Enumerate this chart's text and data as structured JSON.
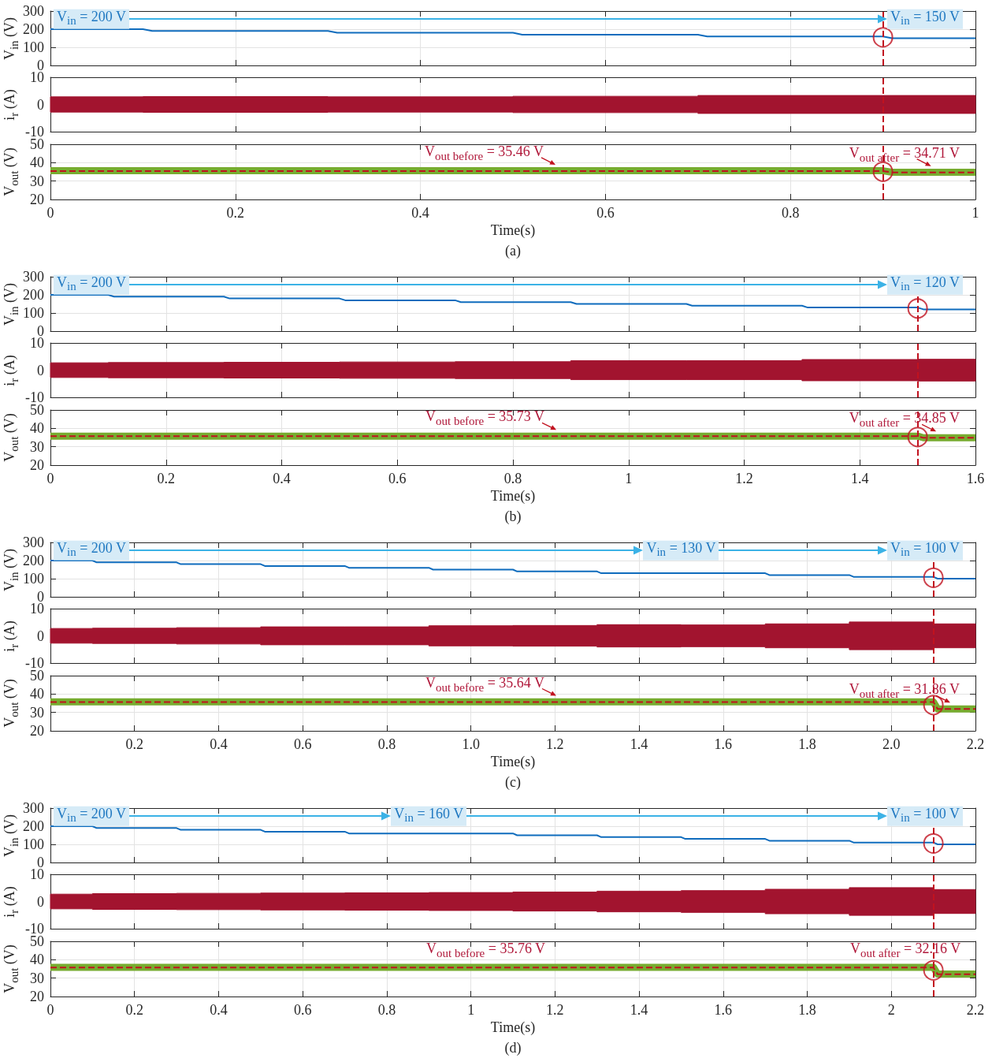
{
  "chart_data": [
    {
      "type": "line",
      "ylabel": "V$_{in}$ (V)",
      "xlim": [
        0,
        1
      ],
      "xticks": [
        0,
        0.2,
        0.4,
        0.6,
        0.8,
        1
      ],
      "ylim": [
        0,
        300
      ],
      "yticks": [
        0,
        100,
        200,
        300
      ],
      "tick_labels": "y",
      "grid": true,
      "series": [
        {
          "color": "#0f6cbd",
          "x": [
            0,
            0.1,
            0.11,
            0.3,
            0.31,
            0.5,
            0.51,
            0.7,
            0.71,
            0.9,
            0.91,
            1
          ],
          "values": [
            200,
            200,
            190,
            190,
            180,
            180,
            170,
            170,
            160,
            160,
            150,
            150
          ]
        },
        {
          "type": "scatter",
          "color": "#c1121f",
          "x": [
            0.9
          ],
          "values": [
            155
          ]
        }
      ],
      "ref_lines": [
        {
          "axis": "x",
          "value": 0.9,
          "color": "#c1121f",
          "line_style": "dashed"
        }
      ],
      "annotations": [
        {
          "text": "V$_{in}$ = 200 V",
          "x": 0.05,
          "y": 200
        },
        {
          "text": "V$_{in}$ = 150 V",
          "x": 0.95,
          "y": 150
        }
      ]
    },
    {
      "type": "line",
      "ylabel": "i$_{r}$ (A)",
      "xlim": [
        0,
        1
      ],
      "xticks": [
        0,
        0.2,
        0.4,
        0.6,
        0.8,
        1
      ],
      "ylim": [
        -10,
        10
      ],
      "yticks": [
        -10,
        0,
        10
      ],
      "tick_labels": "y",
      "grid": true,
      "series": [
        {
          "color": "#a2142f",
          "x": [
            0,
            0.1,
            0.1,
            0.3,
            0.3,
            0.5,
            0.5,
            0.7,
            0.7,
            0.9,
            0.9,
            1
          ],
          "values": [
            0,
            0,
            0,
            0,
            0,
            0,
            0,
            0,
            0,
            0,
            0,
            0
          ],
          "upper": [
            2.8,
            2.8,
            2.9,
            2.9,
            2.8,
            2.8,
            3.0,
            3.0,
            3.3,
            3.3,
            3.3,
            3.3
          ],
          "lower": [
            -2.8,
            -2.8,
            -2.9,
            -2.9,
            -2.8,
            -2.8,
            -3.0,
            -3.0,
            -3.3,
            -3.3,
            -3.3,
            -3.3
          ]
        }
      ],
      "ref_lines": [
        {
          "axis": "x",
          "value": 0.9,
          "color": "#c1121f",
          "line_style": "dashed"
        }
      ]
    },
    {
      "type": "line",
      "title": "(a)",
      "xlabel": "Time(s)",
      "ylabel": "V$_{out}$ (V)",
      "xlim": [
        0,
        1
      ],
      "xticks": [
        0,
        0.2,
        0.4,
        0.6,
        0.8,
        1
      ],
      "ylim": [
        20,
        50
      ],
      "yticks": [
        20,
        30,
        40,
        50
      ],
      "grid": true,
      "series": [
        {
          "color": "#77ac30",
          "x": [
            0,
            0.9,
            0.91,
            1
          ],
          "values": [
            35.6,
            35.6,
            34.8,
            34.8
          ]
        },
        {
          "color": "#c1121f",
          "line_style": "dashed",
          "x": [
            0,
            0.9,
            0.91,
            1
          ],
          "values": [
            35.46,
            35.46,
            34.71,
            34.71
          ]
        },
        {
          "type": "scatter",
          "color": "#c1121f",
          "x": [
            0.9
          ],
          "values": [
            35.1
          ]
        }
      ],
      "ref_lines": [
        {
          "axis": "x",
          "value": 0.9,
          "color": "#c1121f",
          "line_style": "dashed"
        }
      ],
      "annotations": [
        {
          "text": "V$_{out before}$ = 35.46 V",
          "x": 0.546,
          "y": 35.46
        },
        {
          "text": "V$_{out after}$ = 34.71 V",
          "x": 0.952,
          "y": 34.71
        }
      ]
    },
    {
      "type": "line",
      "ylabel": "V$_{in}$ (V)",
      "xlim": [
        0,
        1.6
      ],
      "xticks": [
        0,
        0.2,
        0.4,
        0.6,
        0.8,
        1,
        1.2,
        1.4,
        1.6
      ],
      "ylim": [
        0,
        300
      ],
      "yticks": [
        0,
        100,
        200,
        300
      ],
      "tick_labels": "y",
      "grid": true,
      "series": [
        {
          "color": "#0f6cbd",
          "x": [
            0,
            0.1,
            0.11,
            0.3,
            0.31,
            0.5,
            0.51,
            0.7,
            0.71,
            0.9,
            0.91,
            1.1,
            1.11,
            1.3,
            1.31,
            1.5,
            1.51,
            1.6
          ],
          "values": [
            200,
            200,
            190,
            190,
            180,
            180,
            170,
            170,
            160,
            160,
            150,
            150,
            140,
            140,
            130,
            130,
            120,
            120
          ]
        },
        {
          "type": "scatter",
          "color": "#c1121f",
          "x": [
            1.5
          ],
          "values": [
            125
          ]
        }
      ],
      "ref_lines": [
        {
          "axis": "x",
          "value": 1.5,
          "color": "#c1121f",
          "line_style": "dashed"
        }
      ],
      "annotations": [
        {
          "text": "V$_{in}$ = 200 V",
          "x": 0.05,
          "y": 200
        },
        {
          "text": "V$_{in}$ = 120 V",
          "x": 1.55,
          "y": 120
        }
      ]
    },
    {
      "type": "line",
      "ylabel": "i$_{r}$ (A)",
      "xlim": [
        0,
        1.6
      ],
      "xticks": [
        0,
        0.2,
        0.4,
        0.6,
        0.8,
        1,
        1.2,
        1.4,
        1.6
      ],
      "ylim": [
        -10,
        10
      ],
      "yticks": [
        -10,
        0,
        10
      ],
      "tick_labels": "y",
      "grid": true,
      "series": [
        {
          "color": "#a2142f",
          "x": [
            0,
            0.1,
            0.1,
            0.3,
            0.3,
            0.5,
            0.5,
            0.7,
            0.7,
            0.9,
            0.9,
            1.1,
            1.1,
            1.3,
            1.3,
            1.5,
            1.5,
            1.6
          ],
          "values": [
            0,
            0,
            0,
            0,
            0,
            0,
            0,
            0,
            0,
            0,
            0,
            0,
            0,
            0,
            0,
            0,
            0,
            0
          ],
          "upper": [
            2.7,
            2.7,
            2.8,
            2.8,
            2.9,
            2.9,
            3.0,
            3.0,
            3.1,
            3.1,
            3.5,
            3.5,
            3.5,
            3.5,
            3.9,
            3.9,
            4.0,
            4.0
          ],
          "lower": [
            -2.7,
            -2.7,
            -2.8,
            -2.8,
            -2.9,
            -2.9,
            -3.0,
            -3.0,
            -3.1,
            -3.1,
            -3.5,
            -3.5,
            -3.5,
            -3.5,
            -3.9,
            -3.9,
            -4.0,
            -4.0
          ]
        }
      ],
      "ref_lines": [
        {
          "axis": "x",
          "value": 1.5,
          "color": "#c1121f",
          "line_style": "dashed"
        }
      ]
    },
    {
      "type": "line",
      "title": "(b)",
      "xlabel": "Time(s)",
      "ylabel": "V$_{out}$ (V)",
      "xlim": [
        0,
        1.6
      ],
      "xticks": [
        0,
        0.2,
        0.4,
        0.6,
        0.8,
        1,
        1.2,
        1.4,
        1.6
      ],
      "ylim": [
        20,
        50
      ],
      "yticks": [
        20,
        30,
        40,
        50
      ],
      "grid": true,
      "series": [
        {
          "color": "#77ac30",
          "x": [
            0,
            1.5,
            1.51,
            1.6
          ],
          "values": [
            35.8,
            35.8,
            34.9,
            34.9
          ]
        },
        {
          "color": "#c1121f",
          "line_style": "dashed",
          "x": [
            0,
            1.5,
            1.51,
            1.6
          ],
          "values": [
            35.73,
            35.73,
            34.85,
            34.85
          ]
        },
        {
          "type": "scatter",
          "color": "#c1121f",
          "x": [
            1.5
          ],
          "values": [
            35.3
          ]
        }
      ],
      "ref_lines": [
        {
          "axis": "x",
          "value": 1.5,
          "color": "#c1121f",
          "line_style": "dashed"
        }
      ],
      "annotations": [
        {
          "text": "V$_{out before}$ = 35.73 V",
          "x": 0.875,
          "y": 35.73
        },
        {
          "text": "V$_{out after}$ = 34.85 V",
          "x": 1.532,
          "y": 34.85
        }
      ]
    },
    {
      "type": "line",
      "ylabel": "V$_{in}$ (V)",
      "xlim": [
        0,
        2.2
      ],
      "xticks": [
        0.2,
        0.4,
        0.6,
        0.8,
        1,
        1.2,
        1.4,
        1.6,
        1.8,
        2,
        2.2
      ],
      "ylim": [
        0,
        300
      ],
      "yticks": [
        0,
        100,
        200,
        300
      ],
      "tick_labels": "y",
      "grid": true,
      "series": [
        {
          "color": "#0f6cbd",
          "x": [
            0,
            0.1,
            0.11,
            0.3,
            0.31,
            0.5,
            0.51,
            0.7,
            0.71,
            0.9,
            0.91,
            1.1,
            1.11,
            1.3,
            1.31,
            1.7,
            1.71,
            1.9,
            1.91,
            2.1,
            2.11,
            2.2
          ],
          "values": [
            200,
            200,
            190,
            190,
            180,
            180,
            170,
            170,
            160,
            160,
            150,
            150,
            140,
            140,
            130,
            130,
            120,
            120,
            110,
            110,
            100,
            100
          ]
        },
        {
          "type": "scatter",
          "color": "#c1121f",
          "x": [
            2.1
          ],
          "values": [
            105
          ]
        }
      ],
      "ref_lines": [
        {
          "axis": "x",
          "value": 2.1,
          "color": "#c1121f",
          "line_style": "dashed"
        }
      ],
      "annotations": [
        {
          "text": "V$_{in}$ = 200 V",
          "x": 0.05,
          "y": 200
        },
        {
          "text": "V$_{in}$ = 130 V",
          "x": 1.5,
          "y": 130
        },
        {
          "text": "V$_{in}$ = 100 V",
          "x": 2.15,
          "y": 100
        }
      ]
    },
    {
      "type": "line",
      "ylabel": "i$_{r}$ (A)",
      "xlim": [
        0,
        2.2
      ],
      "xticks": [
        0.2,
        0.4,
        0.6,
        0.8,
        1,
        1.2,
        1.4,
        1.6,
        1.8,
        2,
        2.2
      ],
      "ylim": [
        -10,
        10
      ],
      "yticks": [
        -10,
        0,
        10
      ],
      "tick_labels": "y",
      "grid": true,
      "series": [
        {
          "color": "#a2142f",
          "x": [
            0,
            0.1,
            0.1,
            0.3,
            0.3,
            0.5,
            0.5,
            0.7,
            0.7,
            0.9,
            0.9,
            1.1,
            1.1,
            1.3,
            1.3,
            1.5,
            1.5,
            1.7,
            1.7,
            1.9,
            1.9,
            2.1,
            2.1,
            2.2
          ],
          "values": [
            0,
            0,
            0,
            0,
            0,
            0,
            0,
            0,
            0,
            0,
            0,
            0,
            0,
            0,
            0,
            0,
            0,
            0,
            0,
            0,
            0,
            0,
            0,
            0
          ],
          "upper": [
            2.7,
            2.7,
            2.8,
            2.8,
            3.0,
            3.0,
            3.3,
            3.3,
            3.3,
            3.3,
            3.7,
            3.7,
            3.8,
            3.8,
            4.1,
            4.1,
            4.0,
            4.0,
            4.4,
            4.4,
            5.1,
            5.1,
            4.4,
            4.4
          ],
          "lower": [
            -2.7,
            -2.7,
            -2.8,
            -2.8,
            -3.0,
            -3.0,
            -3.3,
            -3.3,
            -3.3,
            -3.3,
            -3.7,
            -3.7,
            -3.8,
            -3.8,
            -4.1,
            -4.1,
            -4.0,
            -4.0,
            -4.4,
            -4.4,
            -5.1,
            -5.1,
            -4.4,
            -4.4
          ]
        }
      ],
      "ref_lines": [
        {
          "axis": "x",
          "value": 2.1,
          "color": "#c1121f",
          "line_style": "dashed"
        }
      ]
    },
    {
      "type": "line",
      "title": "(c)",
      "xlabel": "Time(s)",
      "ylabel": "V$_{out}$ (V)",
      "xlim": [
        0,
        2.2
      ],
      "xticks": [
        0.2,
        0.4,
        0.6,
        0.8,
        {
          "value": 1,
          "label": "1.0"
        },
        1.2,
        1.4,
        1.6,
        1.8,
        {
          "value": 2,
          "label": "2.0"
        },
        2.2
      ],
      "ylim": [
        20,
        50
      ],
      "yticks": [
        20,
        30,
        40,
        50
      ],
      "grid": true,
      "series": [
        {
          "color": "#77ac30",
          "x": [
            0,
            2.1,
            2.11,
            2.2
          ],
          "values": [
            35.7,
            35.7,
            31.9,
            31.9
          ]
        },
        {
          "color": "#c1121f",
          "line_style": "dashed",
          "x": [
            0,
            2.1,
            2.11,
            2.2
          ],
          "values": [
            35.64,
            35.64,
            31.86,
            31.86
          ]
        },
        {
          "type": "scatter",
          "color": "#c1121f",
          "x": [
            2.1
          ],
          "values": [
            34
          ]
        }
      ],
      "ref_lines": [
        {
          "axis": "x",
          "value": 2.1,
          "color": "#c1121f",
          "line_style": "dashed"
        }
      ],
      "annotations": [
        {
          "text": "V$_{out before}$ = 35.64 V",
          "x": 1.203,
          "y": 35.64
        },
        {
          "text": "V$_{out after}$ = 31.86 V",
          "x": 2.14,
          "y": 31.86
        }
      ]
    },
    {
      "type": "line",
      "ylabel": "V$_{in}$ (V)",
      "xlim": [
        0,
        2.2
      ],
      "xticks": [
        0,
        0.2,
        0.4,
        0.6,
        0.8,
        1,
        1.2,
        1.4,
        1.6,
        1.8,
        2,
        2.2
      ],
      "ylim": [
        0,
        300
      ],
      "yticks": [
        0,
        100,
        200,
        300
      ],
      "tick_labels": "y",
      "grid": true,
      "series": [
        {
          "color": "#0f6cbd",
          "x": [
            0,
            0.1,
            0.11,
            0.3,
            0.31,
            0.5,
            0.51,
            0.7,
            0.71,
            1.1,
            1.11,
            1.3,
            1.31,
            1.5,
            1.51,
            1.7,
            1.71,
            1.9,
            1.91,
            2.1,
            2.11,
            2.2
          ],
          "values": [
            200,
            200,
            190,
            190,
            180,
            180,
            170,
            170,
            160,
            160,
            150,
            150,
            140,
            140,
            130,
            130,
            120,
            120,
            110,
            110,
            100,
            100
          ]
        },
        {
          "type": "scatter",
          "color": "#c1121f",
          "x": [
            2.1
          ],
          "values": [
            105
          ]
        }
      ],
      "ref_lines": [
        {
          "axis": "x",
          "value": 2.1,
          "color": "#c1121f",
          "line_style": "dashed"
        }
      ],
      "annotations": [
        {
          "text": "V$_{in}$ = 200 V",
          "x": 0.05,
          "y": 200
        },
        {
          "text": "V$_{in}$ = 160 V",
          "x": 0.9,
          "y": 160
        },
        {
          "text": "V$_{in}$ = 100 V",
          "x": 2.15,
          "y": 100
        }
      ]
    },
    {
      "type": "line",
      "ylabel": "i$_{r}$ (A)",
      "xlim": [
        0,
        2.2
      ],
      "xticks": [
        0,
        0.2,
        0.4,
        0.6,
        0.8,
        1,
        1.2,
        1.4,
        1.6,
        1.8,
        2,
        2.2
      ],
      "ylim": [
        -10,
        10
      ],
      "yticks": [
        -10,
        0,
        10
      ],
      "tick_labels": "y",
      "grid": true,
      "series": [
        {
          "color": "#a2142f",
          "x": [
            0,
            0.1,
            0.1,
            0.3,
            0.3,
            0.5,
            0.5,
            0.7,
            0.7,
            0.9,
            0.9,
            1.1,
            1.1,
            1.3,
            1.3,
            1.5,
            1.5,
            1.7,
            1.7,
            1.9,
            1.9,
            2.1,
            2.1,
            2.2
          ],
          "values": [
            0,
            0,
            0,
            0,
            0,
            0,
            0,
            0,
            0,
            0,
            0,
            0,
            0,
            0,
            0,
            0,
            0,
            0,
            0,
            0,
            0,
            0,
            0,
            0
          ],
          "upper": [
            2.7,
            2.7,
            2.9,
            2.9,
            3.0,
            3.0,
            3.1,
            3.1,
            3.2,
            3.2,
            3.3,
            3.3,
            3.5,
            3.5,
            3.8,
            3.8,
            4.0,
            4.0,
            4.5,
            4.5,
            5.1,
            5.1,
            4.4,
            4.4
          ],
          "lower": [
            -2.7,
            -2.7,
            -2.9,
            -2.9,
            -3.0,
            -3.0,
            -3.1,
            -3.1,
            -3.2,
            -3.2,
            -3.3,
            -3.3,
            -3.5,
            -3.5,
            -3.8,
            -3.8,
            -4.0,
            -4.0,
            -4.5,
            -4.5,
            -5.1,
            -5.1,
            -4.4,
            -4.4
          ]
        }
      ],
      "ref_lines": [
        {
          "axis": "x",
          "value": 2.1,
          "color": "#c1121f",
          "line_style": "dashed"
        }
      ]
    },
    {
      "type": "line",
      "title": "(d)",
      "xlabel": "Time(s)",
      "ylabel": "V$_{out}$ (V)",
      "xlim": [
        0,
        2.2
      ],
      "xticks": [
        0,
        0.2,
        0.4,
        0.6,
        0.8,
        1,
        1.2,
        1.4,
        1.6,
        1.8,
        2,
        2.2
      ],
      "ylim": [
        20,
        50
      ],
      "yticks": [
        20,
        30,
        40,
        50
      ],
      "grid": true,
      "series": [
        {
          "color": "#77ac30",
          "x": [
            0,
            2.1,
            2.11,
            2.2
          ],
          "values": [
            35.9,
            35.9,
            32.2,
            32.2
          ]
        },
        {
          "color": "#c1121f",
          "line_style": "dashed",
          "x": [
            0,
            2.1,
            2.11,
            2.2
          ],
          "values": [
            35.76,
            35.76,
            32.16,
            32.16
          ]
        },
        {
          "type": "scatter",
          "color": "#c1121f",
          "x": [
            2.1
          ],
          "values": [
            34.2
          ]
        }
      ],
      "ref_lines": [
        {
          "axis": "x",
          "value": 2.1,
          "color": "#c1121f",
          "line_style": "dashed"
        }
      ],
      "annotations": [
        "V$_{out before}$ = 35.76 V",
        "V$_{out after}$ = 32.16 V"
      ]
    }
  ]
}
